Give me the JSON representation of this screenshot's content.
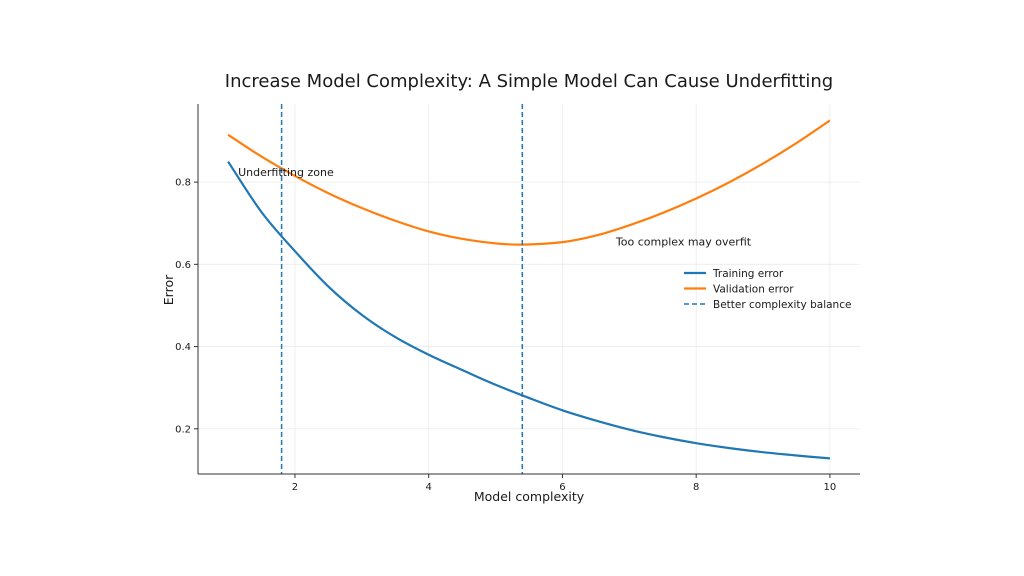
{
  "chart_data": {
    "type": "line",
    "title": "Increase Model Complexity: A Simple Model Can Cause Underfitting",
    "xlabel": "Model complexity",
    "ylabel": "Error",
    "xlim": [
      0.55,
      10.45
    ],
    "ylim": [
      0.09,
      0.99
    ],
    "xticks": [
      2,
      4,
      6,
      8,
      10
    ],
    "yticks": [
      0.2,
      0.4,
      0.6,
      0.8
    ],
    "xtick_labels": [
      "2",
      "4",
      "6",
      "8",
      "10"
    ],
    "ytick_labels": [
      "0.2",
      "0.4",
      "0.6",
      "0.8"
    ],
    "grid": true,
    "legend_position": "right",
    "series": [
      {
        "name": "Training error",
        "color": "#1f77b4",
        "style": "solid",
        "x": [
          1,
          1.5,
          2,
          2.5,
          3,
          3.5,
          4,
          4.5,
          5,
          5.5,
          6,
          6.5,
          7,
          7.5,
          8,
          8.5,
          9,
          9.5,
          10
        ],
        "y": [
          0.85,
          0.727,
          0.632,
          0.546,
          0.477,
          0.423,
          0.38,
          0.343,
          0.307,
          0.275,
          0.245,
          0.22,
          0.198,
          0.18,
          0.165,
          0.153,
          0.143,
          0.135,
          0.128
        ]
      },
      {
        "name": "Validation error",
        "color": "#ff7f0e",
        "style": "solid",
        "x": [
          1,
          1.5,
          2,
          2.5,
          3,
          3.5,
          4,
          4.5,
          5,
          5.4,
          6,
          6.5,
          7,
          7.5,
          8,
          8.5,
          9,
          9.5,
          10
        ],
        "y": [
          0.915,
          0.862,
          0.815,
          0.773,
          0.737,
          0.706,
          0.68,
          0.662,
          0.651,
          0.648,
          0.654,
          0.67,
          0.695,
          0.725,
          0.76,
          0.8,
          0.845,
          0.895,
          0.95
        ]
      },
      {
        "name": "Better complexity balance",
        "color": "#1f77b4",
        "style": "dashed",
        "vlines": [
          1.8,
          5.4
        ]
      }
    ],
    "annotations": [
      {
        "text": "Underfitting zone",
        "x": 1.15,
        "y": 0.825
      },
      {
        "text": "Too complex may overfit",
        "x": 6.8,
        "y": 0.655
      }
    ]
  }
}
